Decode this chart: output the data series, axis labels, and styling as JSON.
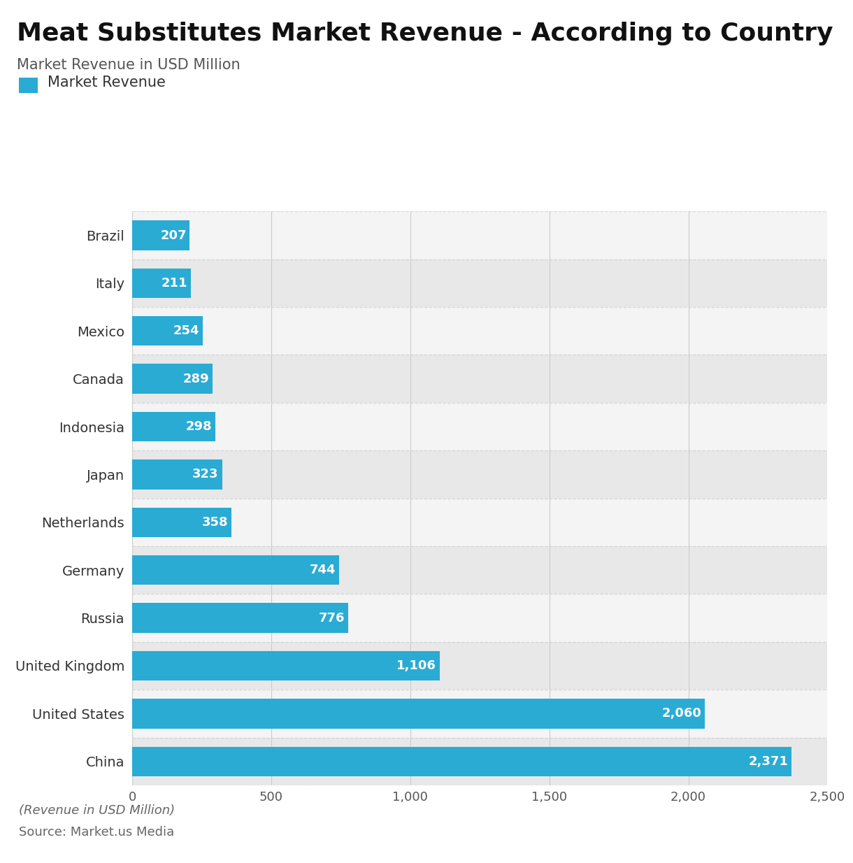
{
  "title": "Meat Substitutes Market Revenue - According to Country",
  "subtitle": "Market Revenue in USD Million",
  "legend_label": "Market Revenue",
  "footnote": "(Revenue in USD Million)",
  "source": "Source: Market.us Media",
  "countries": [
    "China",
    "United States",
    "United Kingdom",
    "Russia",
    "Germany",
    "Netherlands",
    "Japan",
    "Indonesia",
    "Canada",
    "Mexico",
    "Italy",
    "Brazil"
  ],
  "values": [
    2371,
    2060,
    1106,
    776,
    744,
    358,
    323,
    298,
    289,
    254,
    211,
    207
  ],
  "bar_color": "#29ABD4",
  "bar_label_color": "#ffffff",
  "plot_bg_color": "#efefef",
  "fig_bg_color": "#ffffff",
  "title_fontsize": 26,
  "subtitle_fontsize": 15,
  "legend_fontsize": 15,
  "bar_label_fontsize": 13,
  "ytick_fontsize": 14,
  "xtick_fontsize": 13,
  "footnote_fontsize": 13,
  "source_fontsize": 13,
  "xlim": [
    0,
    2500
  ],
  "xticks": [
    0,
    500,
    1000,
    1500,
    2000,
    2500
  ],
  "xtick_labels": [
    "0",
    "500",
    "1,000",
    "1,500",
    "2,000",
    "2,500"
  ],
  "grid_color": "#cccccc",
  "separator_color": "#cccccc"
}
